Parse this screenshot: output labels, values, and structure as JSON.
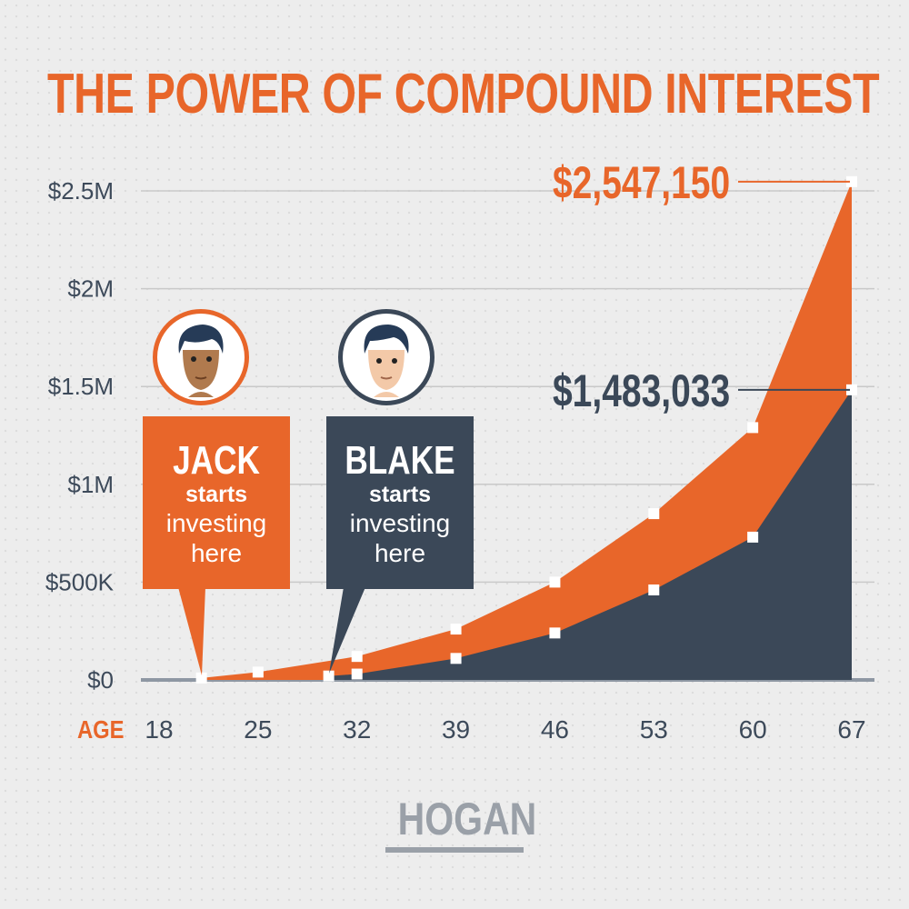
{
  "title": "THE POWER OF COMPOUND INTEREST",
  "colors": {
    "orange": "#e8662a",
    "navy": "#3b4858",
    "grid": "#c9c9c9"
  },
  "callouts": [
    {
      "name": "JACK",
      "line1": "starts",
      "line2": "investing",
      "line3": "here",
      "color": "#e8662a",
      "icon": "man-avatar-icon"
    },
    {
      "name": "BLAKE",
      "line1": "starts",
      "line2": "investing",
      "line3": "here",
      "color": "#3b4858",
      "icon": "man-avatar-icon"
    }
  ],
  "logo": "HOGAN",
  "chart_data": {
    "type": "area",
    "title": "THE POWER OF COMPOUND INTEREST",
    "xlabel": "AGE",
    "ylabel": "",
    "x_ticks": [
      "18",
      "25",
      "32",
      "39",
      "46",
      "53",
      "60",
      "67"
    ],
    "y_ticks": [
      "$0",
      "$500K",
      "$1M",
      "$1.5M",
      "$2M",
      "$2.5M"
    ],
    "xlim": [
      18,
      67
    ],
    "ylim": [
      0,
      2500000
    ],
    "grid": true,
    "series": [
      {
        "name": "JACK",
        "x": [
          21,
          25,
          32,
          39,
          46,
          53,
          60,
          67
        ],
        "y": [
          10000,
          40000,
          120000,
          260000,
          500000,
          850000,
          1290000,
          2547150
        ]
      },
      {
        "name": "BLAKE",
        "x": [
          30,
          32,
          39,
          46,
          53,
          60,
          67
        ],
        "y": [
          20000,
          30000,
          110000,
          240000,
          460000,
          730000,
          1483033
        ]
      }
    ],
    "annotations": [
      "$2,547,150",
      "$1,483,033"
    ]
  }
}
